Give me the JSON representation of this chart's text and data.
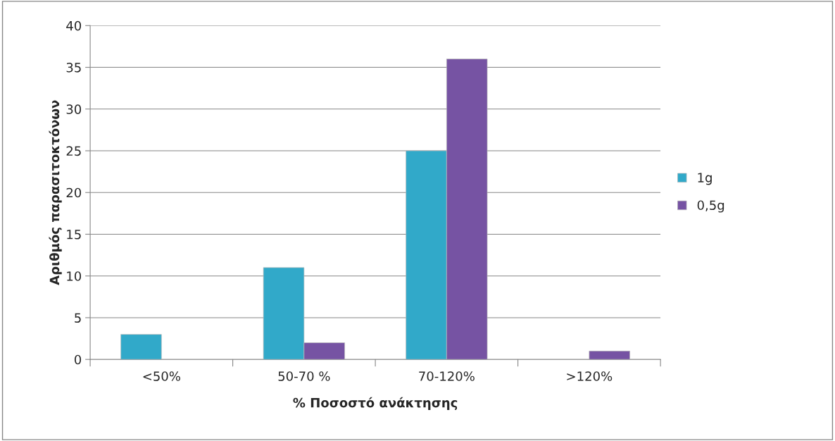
{
  "chart_data": {
    "type": "bar",
    "xlabel": "% Ποσοστό ανάκτησης",
    "ylabel": "Αριθμός παρασιτοκτόνων",
    "categories": [
      "<50%",
      "50-70 %",
      "70-120%",
      ">120%"
    ],
    "series": [
      {
        "name": "1g",
        "color": "#31a9c9",
        "values": [
          3,
          11,
          25,
          null
        ]
      },
      {
        "name": "0,5g",
        "color": "#7653a3",
        "values": [
          null,
          2,
          36,
          1
        ]
      }
    ],
    "ylim": [
      0,
      40
    ],
    "yticks": [
      0,
      5,
      10,
      15,
      20,
      25,
      30,
      35,
      40
    ],
    "grid": "y",
    "legend": "right"
  }
}
